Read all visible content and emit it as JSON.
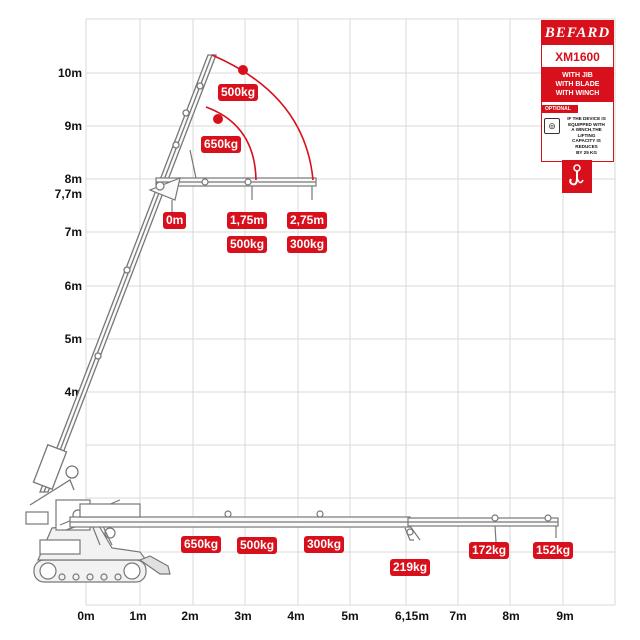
{
  "brand": {
    "name": "BEFARD",
    "color": "#d8101c"
  },
  "panel": {
    "model": "XM1600",
    "config_lines": [
      "WITH JIB",
      "WITH BLADE",
      "WITH WINCH"
    ],
    "optional_label": "OPTIONAL",
    "note_lines": [
      "IF THE DEVICE IS",
      "EQUIPPED WITH",
      "A WINCH,THE LIFTING",
      "CAPACITY IS REDUCES",
      "BY 25 KG"
    ],
    "winch_icon": "winch-icon",
    "hook_icon": "hook-icon"
  },
  "axes": {
    "x_ticks": [
      "0m",
      "1m",
      "2m",
      "3m",
      "4m",
      "5m",
      "6,15m",
      "7m",
      "8m",
      "9m"
    ],
    "y_ticks": [
      "10m",
      "9m",
      "8m",
      "7,7m",
      "7m",
      "6m",
      "5m",
      "4m"
    ],
    "grid": true
  },
  "jib_loads": {
    "arc_outer": "500kg",
    "arc_inner": "650kg",
    "distances": [
      "0m",
      "1,75m",
      "2,75m"
    ],
    "capacities": [
      "500kg",
      "300kg"
    ]
  },
  "ground_loads": [
    "650kg",
    "500kg",
    "300kg",
    "219kg",
    "172kg",
    "152kg"
  ]
}
